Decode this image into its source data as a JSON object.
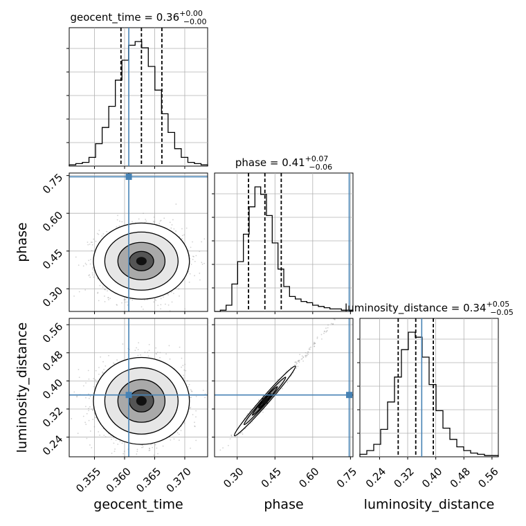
{
  "chart_data": {
    "type": "corner",
    "parameters": [
      "geocent_time",
      "phase",
      "luminosity_distance"
    ],
    "axis_labels": {
      "geocent_time": "geocent_time",
      "phase": "phase",
      "luminosity_distance": "luminosity_distance"
    },
    "ranges": {
      "geocent_time": [
        0.3508,
        0.3738
      ],
      "phase": [
        0.21,
        0.76
      ],
      "luminosity_distance": [
        0.184,
        0.578
      ]
    },
    "ticks": {
      "geocent_time": [
        0.355,
        0.36,
        0.365,
        0.37
      ],
      "phase": [
        0.3,
        0.45,
        0.6,
        0.75
      ],
      "luminosity_distance": [
        0.24,
        0.32,
        0.4,
        0.48,
        0.56
      ]
    },
    "tick_labels": {
      "geocent_time": [
        "0.355",
        "0.360",
        "0.365",
        "0.370"
      ],
      "phase": [
        "0.30",
        "0.45",
        "0.60",
        "0.75"
      ],
      "luminosity_distance": [
        "0.24",
        "0.32",
        "0.40",
        "0.48",
        "0.56"
      ]
    },
    "titles": {
      "geocent_time": {
        "name": "geocent_time",
        "median": "0.36",
        "plus": "+0.00",
        "minus": "−0.00"
      },
      "phase": {
        "name": "phase",
        "median": "0.41",
        "plus": "+0.07",
        "minus": "−0.06"
      },
      "luminosity_distance": {
        "name": "luminosity_distance",
        "median": "0.34",
        "plus": "+0.05",
        "minus": "−0.05"
      }
    },
    "quantiles": {
      "geocent_time": [
        0.3594,
        0.3628,
        0.3662
      ],
      "phase": [
        0.345,
        0.41,
        0.475
      ],
      "luminosity_distance": [
        0.293,
        0.343,
        0.393
      ]
    },
    "truths": {
      "geocent_time": 0.3607,
      "phase": 0.745,
      "luminosity_distance": 0.36
    },
    "histograms": {
      "geocent_time": [
        0.01,
        0.02,
        0.03,
        0.07,
        0.18,
        0.31,
        0.48,
        0.69,
        0.85,
        0.97,
        1.0,
        0.95,
        0.8,
        0.61,
        0.42,
        0.27,
        0.14,
        0.07,
        0.03,
        0.02,
        0.01
      ],
      "phase": [
        0.0,
        0.01,
        0.05,
        0.22,
        0.4,
        0.62,
        0.84,
        1.0,
        0.94,
        0.77,
        0.55,
        0.34,
        0.2,
        0.12,
        0.1,
        0.08,
        0.07,
        0.05,
        0.04,
        0.03,
        0.02,
        0.02,
        0.01,
        0.01
      ],
      "luminosity_distance": [
        0.02,
        0.05,
        0.1,
        0.22,
        0.44,
        0.64,
        0.86,
        1.0,
        0.96,
        0.8,
        0.58,
        0.37,
        0.23,
        0.14,
        0.08,
        0.05,
        0.03,
        0.02,
        0.01,
        0.01
      ]
    },
    "posterior_mean": {
      "geocent_time": 0.3628,
      "phase": 0.41,
      "luminosity_distance": 0.343
    },
    "posterior_std": {
      "geocent_time": 0.0029,
      "phase": 0.055,
      "luminosity_distance": 0.045
    },
    "grid": true
  }
}
